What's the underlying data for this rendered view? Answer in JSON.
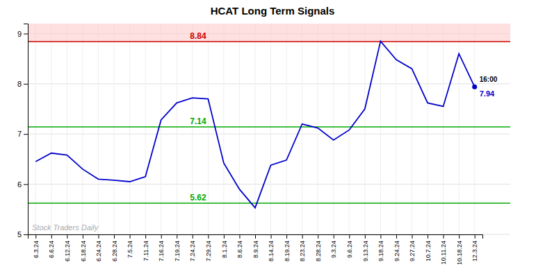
{
  "chart_data": {
    "type": "line",
    "title": "HCAT Long Term Signals",
    "categories": [
      "6.3.24",
      "6.6.24",
      "6.12.24",
      "6.18.24",
      "6.24.24",
      "6.28.24",
      "7.5.24",
      "7.11.24",
      "7.16.24",
      "7.19.24",
      "7.24.24",
      "7.29.24",
      "8.1.24",
      "8.6.24",
      "8.9.24",
      "8.14.24",
      "8.19.24",
      "8.23.24",
      "8.28.24",
      "9.3.24",
      "9.6.24",
      "9.13.24",
      "9.18.24",
      "9.24.24",
      "9.27.24",
      "10.7.24",
      "10.11.24",
      "10.18.24",
      "12.3.24"
    ],
    "values": [
      6.45,
      6.62,
      6.58,
      6.3,
      6.1,
      6.08,
      6.05,
      6.15,
      7.28,
      7.62,
      7.72,
      7.7,
      6.42,
      5.9,
      5.53,
      6.38,
      6.48,
      7.2,
      7.12,
      6.88,
      7.08,
      7.5,
      8.85,
      8.48,
      8.3,
      7.62,
      7.55,
      8.6,
      7.94
    ],
    "color": "#0000cc",
    "ylim": [
      5.0,
      9.2
    ],
    "yticks": [
      5,
      6,
      7,
      8,
      9
    ],
    "grid": true,
    "reference_lines": [
      {
        "value": 8.84,
        "label": "8.84",
        "color": "#cc0000",
        "fill_color": "#ffcccc"
      },
      {
        "value": 7.14,
        "label": "7.14",
        "color": "#00aa00"
      },
      {
        "value": 5.62,
        "label": "5.62",
        "color": "#00aa00"
      }
    ],
    "annotations": [
      {
        "text": "16:00",
        "category": "12.3.24"
      },
      {
        "text": "7.94",
        "category": "12.3.24",
        "value": 7.94,
        "marker": "circle"
      },
      {
        "text": "Stock Traders Daily"
      }
    ]
  }
}
